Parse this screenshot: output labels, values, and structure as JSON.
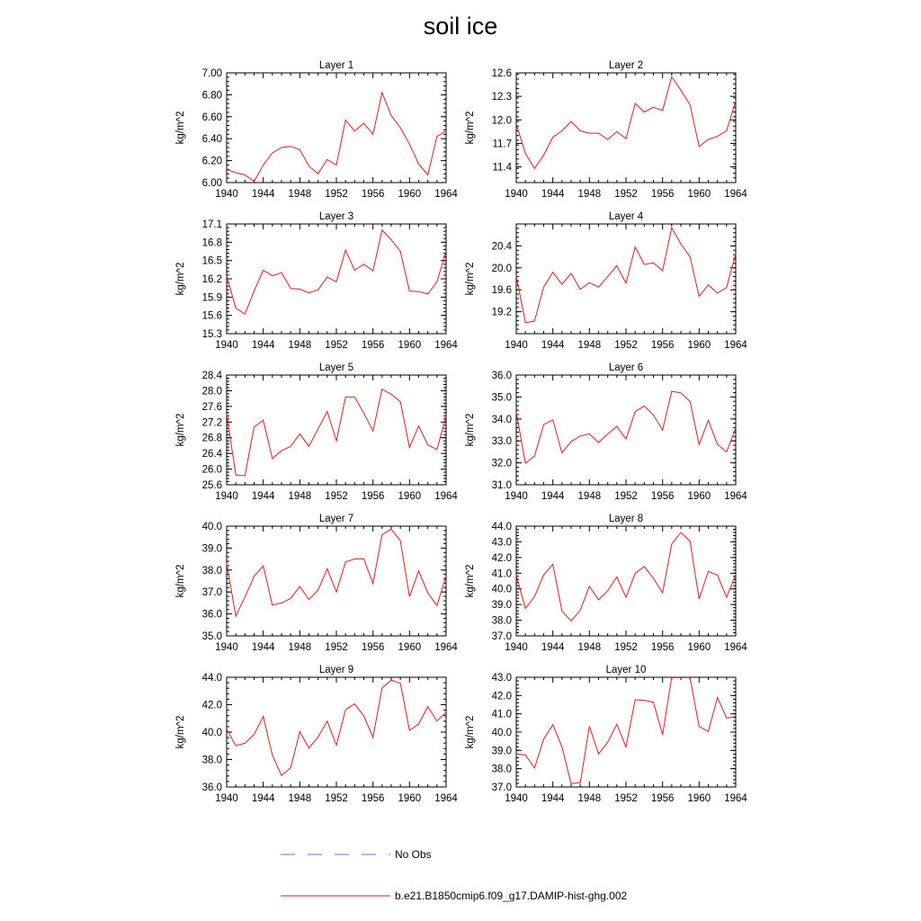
{
  "title": "soil ice",
  "legend": {
    "position": "bottom-center",
    "entries": [
      {
        "label": "No Obs",
        "color": "#6b6bd6",
        "style": "dashed"
      },
      {
        "label": "b.e21.B1850cmip6.f09_g17.DAMIP-hist-ghg.002",
        "color": "#e31a1c",
        "style": "solid"
      }
    ]
  },
  "chart_data": [
    {
      "type": "line",
      "title": "Layer 1",
      "ylabel": "kg/m^2",
      "xlim": [
        1940,
        1964
      ],
      "ylim": [
        6.0,
        7.0
      ],
      "xticks": [
        "1940",
        "1944",
        "1948",
        "1952",
        "1956",
        "1960",
        "1964"
      ],
      "yticks": [
        "6.00",
        "6.20",
        "6.40",
        "6.60",
        "6.80",
        "7.00"
      ],
      "x": [
        1940,
        1941,
        1942,
        1943,
        1944,
        1945,
        1946,
        1947,
        1948,
        1949,
        1950,
        1951,
        1952,
        1953,
        1954,
        1955,
        1956,
        1957,
        1958,
        1959,
        1960,
        1961,
        1962,
        1963,
        1964
      ],
      "series": [
        {
          "name": "b.e21.B1850cmip6.f09_g17.DAMIP-hist-ghg.002",
          "color": "#e31a1c",
          "values": [
            6.12,
            6.09,
            6.07,
            6.01,
            6.16,
            6.27,
            6.32,
            6.33,
            6.3,
            6.15,
            6.08,
            6.21,
            6.16,
            6.57,
            6.47,
            6.54,
            6.44,
            6.82,
            6.61,
            6.5,
            6.35,
            6.17,
            6.07,
            6.42,
            6.47
          ]
        }
      ]
    },
    {
      "type": "line",
      "title": "Layer 2",
      "ylabel": "kg/m^2",
      "xlim": [
        1940,
        1964
      ],
      "ylim": [
        11.2,
        12.6
      ],
      "xticks": [
        "1940",
        "1944",
        "1948",
        "1952",
        "1956",
        "1960",
        "1964"
      ],
      "yticks": [
        "11.4",
        "11.7",
        "12.0",
        "12.3",
        "12.6"
      ],
      "x": [
        1940,
        1941,
        1942,
        1943,
        1944,
        1945,
        1946,
        1947,
        1948,
        1949,
        1950,
        1951,
        1952,
        1953,
        1954,
        1955,
        1956,
        1957,
        1958,
        1959,
        1960,
        1961,
        1962,
        1963,
        1964
      ],
      "series": [
        {
          "name": "b.e21.B1850cmip6.f09_g17.DAMIP-hist-ghg.002",
          "color": "#e31a1c",
          "values": [
            11.95,
            11.57,
            11.38,
            11.55,
            11.78,
            11.86,
            11.98,
            11.86,
            11.83,
            11.83,
            11.75,
            11.85,
            11.76,
            12.21,
            12.1,
            12.16,
            12.12,
            12.55,
            12.38,
            12.19,
            11.66,
            11.75,
            11.79,
            11.86,
            12.24
          ]
        }
      ]
    },
    {
      "type": "line",
      "title": "Layer 3",
      "ylabel": "kg/m^2",
      "xlim": [
        1940,
        1964
      ],
      "ylim": [
        15.3,
        17.1
      ],
      "xticks": [
        "1940",
        "1944",
        "1948",
        "1952",
        "1956",
        "1960",
        "1964"
      ],
      "yticks": [
        "15.3",
        "15.6",
        "15.9",
        "16.2",
        "16.5",
        "16.8",
        "17.1"
      ],
      "x": [
        1940,
        1941,
        1942,
        1943,
        1944,
        1945,
        1946,
        1947,
        1948,
        1949,
        1950,
        1951,
        1952,
        1953,
        1954,
        1955,
        1956,
        1957,
        1958,
        1959,
        1960,
        1961,
        1962,
        1963,
        1964
      ],
      "series": [
        {
          "name": "b.e21.B1850cmip6.f09_g17.DAMIP-hist-ghg.002",
          "color": "#e31a1c",
          "values": [
            16.25,
            15.72,
            15.62,
            16.0,
            16.34,
            16.25,
            16.3,
            16.04,
            16.03,
            15.97,
            16.02,
            16.23,
            16.15,
            16.67,
            16.34,
            16.44,
            16.33,
            17.0,
            16.84,
            16.65,
            16.0,
            15.99,
            15.95,
            16.15,
            16.65
          ]
        }
      ]
    },
    {
      "type": "line",
      "title": "Layer 4",
      "ylabel": "kg/m^2",
      "xlim": [
        1940,
        1964
      ],
      "ylim": [
        18.8,
        20.8
      ],
      "xticks": [
        "1940",
        "1944",
        "1948",
        "1952",
        "1956",
        "1960",
        "1964"
      ],
      "yticks": [
        "19.2",
        "19.6",
        "20.0",
        "20.4"
      ],
      "x": [
        1940,
        1941,
        1942,
        1943,
        1944,
        1945,
        1946,
        1947,
        1948,
        1949,
        1950,
        1951,
        1952,
        1953,
        1954,
        1955,
        1956,
        1957,
        1958,
        1959,
        1960,
        1961,
        1962,
        1963,
        1964
      ],
      "series": [
        {
          "name": "b.e21.B1850cmip6.f09_g17.DAMIP-hist-ghg.002",
          "color": "#e31a1c",
          "values": [
            19.85,
            19.0,
            19.03,
            19.65,
            19.92,
            19.7,
            19.9,
            19.61,
            19.73,
            19.65,
            19.84,
            20.04,
            19.72,
            20.38,
            20.06,
            20.09,
            19.95,
            20.73,
            20.44,
            20.2,
            19.48,
            19.69,
            19.54,
            19.64,
            20.26
          ]
        }
      ]
    },
    {
      "type": "line",
      "title": "Layer 5",
      "ylabel": "kg/m^2",
      "xlim": [
        1940,
        1964
      ],
      "ylim": [
        25.6,
        28.4
      ],
      "xticks": [
        "1940",
        "1944",
        "1948",
        "1952",
        "1956",
        "1960",
        "1964"
      ],
      "yticks": [
        "25.6",
        "26.0",
        "26.4",
        "26.8",
        "27.2",
        "27.6",
        "28.0",
        "28.4"
      ],
      "x": [
        1940,
        1941,
        1942,
        1943,
        1944,
        1945,
        1946,
        1947,
        1948,
        1949,
        1950,
        1951,
        1952,
        1953,
        1954,
        1955,
        1956,
        1957,
        1958,
        1959,
        1960,
        1961,
        1962,
        1963,
        1964
      ],
      "series": [
        {
          "name": "b.e21.B1850cmip6.f09_g17.DAMIP-hist-ghg.002",
          "color": "#e31a1c",
          "values": [
            27.4,
            25.85,
            25.83,
            27.07,
            27.25,
            26.27,
            26.47,
            26.58,
            26.9,
            26.58,
            27.03,
            27.47,
            26.72,
            27.84,
            27.84,
            27.43,
            26.97,
            28.04,
            27.91,
            27.72,
            26.55,
            27.1,
            26.62,
            26.5,
            27.35
          ]
        }
      ]
    },
    {
      "type": "line",
      "title": "Layer 6",
      "ylabel": "kg/m^2",
      "xlim": [
        1940,
        1964
      ],
      "ylim": [
        31.0,
        36.0
      ],
      "xticks": [
        "1940",
        "1944",
        "1948",
        "1952",
        "1956",
        "1960",
        "1964"
      ],
      "yticks": [
        "31.0",
        "32.0",
        "33.0",
        "34.0",
        "35.0",
        "36.0"
      ],
      "x": [
        1940,
        1941,
        1942,
        1943,
        1944,
        1945,
        1946,
        1947,
        1948,
        1949,
        1950,
        1951,
        1952,
        1953,
        1954,
        1955,
        1956,
        1957,
        1958,
        1959,
        1960,
        1961,
        1962,
        1963,
        1964
      ],
      "series": [
        {
          "name": "b.e21.B1850cmip6.f09_g17.DAMIP-hist-ghg.002",
          "color": "#e31a1c",
          "values": [
            34.3,
            31.98,
            32.31,
            33.74,
            33.96,
            32.45,
            32.97,
            33.22,
            33.32,
            32.93,
            33.32,
            33.66,
            33.08,
            34.33,
            34.59,
            34.18,
            33.49,
            35.26,
            35.19,
            34.8,
            32.83,
            33.94,
            32.84,
            32.49,
            33.58
          ]
        }
      ]
    },
    {
      "type": "line",
      "title": "Layer 7",
      "ylabel": "kg/m^2",
      "xlim": [
        1940,
        1964
      ],
      "ylim": [
        35.0,
        40.0
      ],
      "xticks": [
        "1940",
        "1944",
        "1948",
        "1952",
        "1956",
        "1960",
        "1964"
      ],
      "yticks": [
        "35.0",
        "36.0",
        "37.0",
        "38.0",
        "39.0",
        "40.0"
      ],
      "x": [
        1940,
        1941,
        1942,
        1943,
        1944,
        1945,
        1946,
        1947,
        1948,
        1949,
        1950,
        1951,
        1952,
        1953,
        1954,
        1955,
        1956,
        1957,
        1958,
        1959,
        1960,
        1961,
        1962,
        1963,
        1964
      ],
      "series": [
        {
          "name": "b.e21.B1850cmip6.f09_g17.DAMIP-hist-ghg.002",
          "color": "#e31a1c",
          "values": [
            38.3,
            35.9,
            36.77,
            37.71,
            38.19,
            36.4,
            36.5,
            36.71,
            37.25,
            36.66,
            37.09,
            38.06,
            37.0,
            38.37,
            38.51,
            38.51,
            37.38,
            39.61,
            39.86,
            39.33,
            36.79,
            37.96,
            36.96,
            36.38,
            37.74
          ]
        }
      ]
    },
    {
      "type": "line",
      "title": "Layer 8",
      "ylabel": "kg/m^2",
      "xlim": [
        1940,
        1964
      ],
      "ylim": [
        37.0,
        44.0
      ],
      "xticks": [
        "1940",
        "1944",
        "1948",
        "1952",
        "1956",
        "1960",
        "1964"
      ],
      "yticks": [
        "37.0",
        "38.0",
        "39.0",
        "40.0",
        "41.0",
        "42.0",
        "43.0",
        "44.0"
      ],
      "x": [
        1940,
        1941,
        1942,
        1943,
        1944,
        1945,
        1946,
        1947,
        1948,
        1949,
        1950,
        1951,
        1952,
        1953,
        1954,
        1955,
        1956,
        1957,
        1958,
        1959,
        1960,
        1961,
        1962,
        1963,
        1964
      ],
      "series": [
        {
          "name": "b.e21.B1850cmip6.f09_g17.DAMIP-hist-ghg.002",
          "color": "#e31a1c",
          "values": [
            40.85,
            38.75,
            39.5,
            40.89,
            41.57,
            38.59,
            37.95,
            38.64,
            40.17,
            39.3,
            39.88,
            40.76,
            39.46,
            40.98,
            41.43,
            40.67,
            39.75,
            42.85,
            43.6,
            43.05,
            39.35,
            41.11,
            40.88,
            39.46,
            40.89
          ]
        }
      ]
    },
    {
      "type": "line",
      "title": "Layer 9",
      "ylabel": "kg/m^2",
      "xlim": [
        1940,
        1964
      ],
      "ylim": [
        36.0,
        44.0
      ],
      "xticks": [
        "1940",
        "1944",
        "1948",
        "1952",
        "1956",
        "1960",
        "1964"
      ],
      "yticks": [
        "36.0",
        "38.0",
        "40.0",
        "42.0",
        "44.0"
      ],
      "x": [
        1940,
        1941,
        1942,
        1943,
        1944,
        1945,
        1946,
        1947,
        1948,
        1949,
        1950,
        1951,
        1952,
        1953,
        1954,
        1955,
        1956,
        1957,
        1958,
        1959,
        1960,
        1961,
        1962,
        1963,
        1964
      ],
      "series": [
        {
          "name": "b.e21.B1850cmip6.f09_g17.DAMIP-hist-ghg.002",
          "color": "#e31a1c",
          "values": [
            40.22,
            39.01,
            39.19,
            39.82,
            41.14,
            38.33,
            36.83,
            37.4,
            40.03,
            38.83,
            39.66,
            40.8,
            39.05,
            41.63,
            42.06,
            41.19,
            39.61,
            43.21,
            43.8,
            43.56,
            40.13,
            40.59,
            41.86,
            40.81,
            41.44
          ]
        }
      ]
    },
    {
      "type": "line",
      "title": "Layer 10",
      "ylabel": "kg/m^2",
      "xlim": [
        1940,
        1964
      ],
      "ylim": [
        37.0,
        43.0
      ],
      "xticks": [
        "1940",
        "1944",
        "1948",
        "1952",
        "1956",
        "1960",
        "1964"
      ],
      "yticks": [
        "37.0",
        "38.0",
        "39.0",
        "40.0",
        "41.0",
        "42.0",
        "43.0"
      ],
      "x": [
        1940,
        1941,
        1942,
        1943,
        1944,
        1945,
        1946,
        1947,
        1948,
        1949,
        1950,
        1951,
        1952,
        1953,
        1954,
        1955,
        1956,
        1957,
        1958,
        1959,
        1960,
        1961,
        1962,
        1963,
        1964
      ],
      "series": [
        {
          "name": "b.e21.B1850cmip6.f09_g17.DAMIP-hist-ghg.002",
          "color": "#e31a1c",
          "values": [
            38.81,
            38.75,
            38.04,
            39.62,
            40.41,
            39.2,
            37.18,
            37.23,
            40.32,
            38.81,
            39.45,
            40.43,
            39.19,
            41.77,
            41.74,
            41.64,
            39.85,
            42.98,
            42.98,
            42.98,
            40.31,
            40.04,
            41.89,
            40.77,
            40.85
          ]
        }
      ]
    }
  ]
}
